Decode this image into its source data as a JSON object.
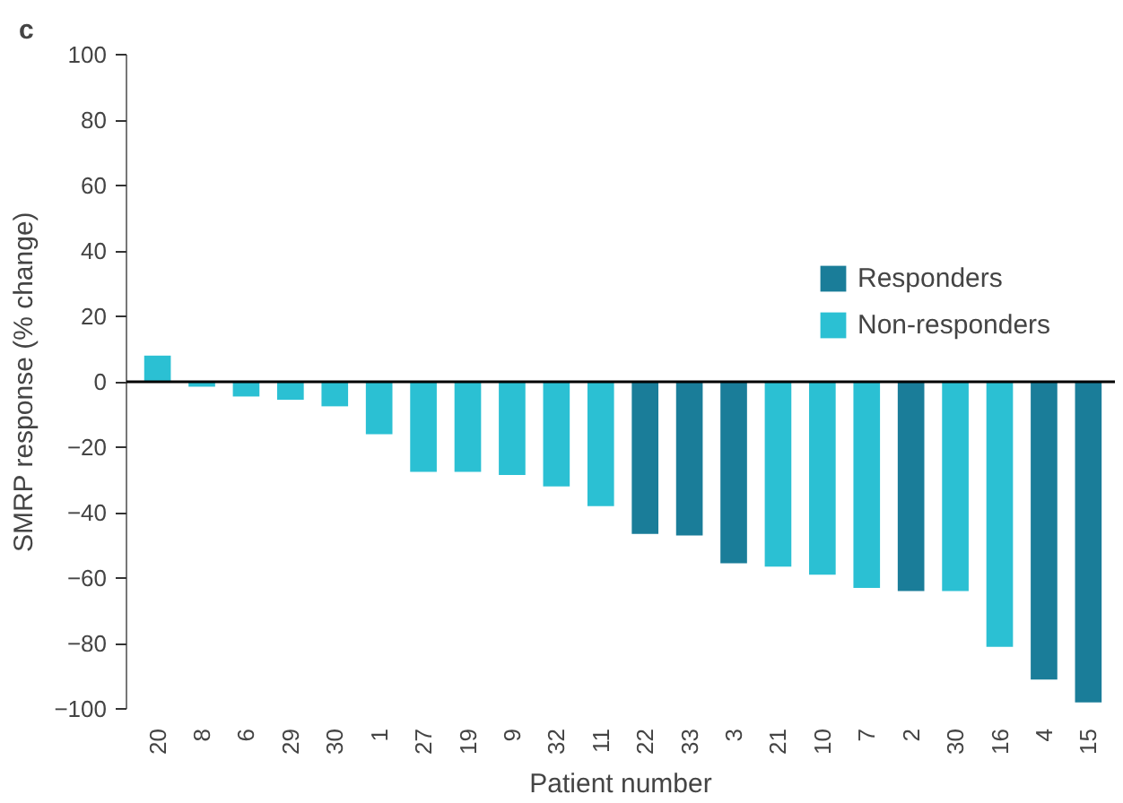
{
  "chart_data": {
    "type": "bar",
    "title": "c",
    "xlabel": "Patient number",
    "ylabel": "SMRP response (% change)",
    "categories": [
      "20",
      "8",
      "6",
      "29",
      "30",
      "1",
      "27",
      "19",
      "9",
      "32",
      "11",
      "22",
      "33",
      "3",
      "21",
      "10",
      "7",
      "2",
      "30",
      "16",
      "4",
      "15"
    ],
    "series": [
      {
        "name": "Responders",
        "color": "#1a7d99",
        "values": [
          null,
          null,
          null,
          null,
          null,
          null,
          null,
          null,
          null,
          null,
          null,
          -46.5,
          -47,
          -55.5,
          null,
          null,
          null,
          -64,
          null,
          null,
          -91,
          -98
        ]
      },
      {
        "name": "Non-responders",
        "color": "#2bc0d3",
        "values": [
          8,
          -1.5,
          -4.5,
          -5.5,
          -7.5,
          -16,
          -27.5,
          -27.5,
          -28.5,
          -32,
          -38,
          null,
          null,
          null,
          -56.5,
          -59,
          -63,
          null,
          -64,
          -81,
          null,
          null
        ]
      }
    ],
    "ylim": [
      -100,
      100
    ],
    "yticks": [
      -100,
      -80,
      -60,
      -40,
      -20,
      0,
      20,
      40,
      60,
      80,
      100
    ],
    "ref_lines": [
      {
        "axis": "y",
        "value": 0,
        "color": "#000000"
      }
    ],
    "grid": false,
    "legend": "right"
  }
}
